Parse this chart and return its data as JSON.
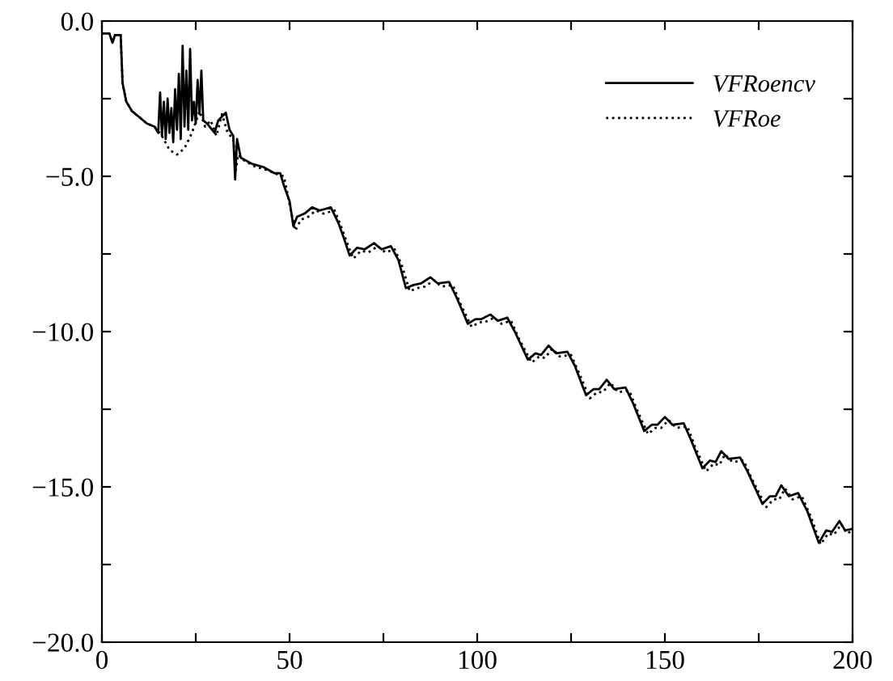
{
  "chart_data": {
    "type": "line",
    "xlim": [
      0,
      200
    ],
    "ylim": [
      -20,
      0
    ],
    "xticks": [
      0,
      {
        "value": 25,
        "label": null
      },
      50,
      {
        "value": 75,
        "label": null
      },
      100,
      {
        "value": 125,
        "label": null
      },
      150,
      {
        "value": 175,
        "label": null
      },
      200
    ],
    "yticks": [
      {
        "value": -20,
        "label": "−20.0"
      },
      {
        "value": -17.5,
        "label": null
      },
      {
        "value": -15,
        "label": "−15.0"
      },
      {
        "value": -12.5,
        "label": null
      },
      {
        "value": -10,
        "label": "−10.0"
      },
      {
        "value": -7.5,
        "label": null
      },
      {
        "value": -5,
        "label": "−5.0"
      },
      {
        "value": -2.5,
        "label": null
      },
      {
        "value": 0,
        "label": "0.0"
      }
    ],
    "grid": false,
    "legend": "top right",
    "marker": "none",
    "series": [
      {
        "name": "VFRoencv",
        "color": "#000000",
        "line_style": "solid",
        "x": [
          0,
          2,
          2.8,
          3.5,
          5,
          5.5,
          6.5,
          8,
          10,
          12,
          14,
          15,
          15.5,
          16,
          16.5,
          17,
          17.5,
          18,
          18.5,
          19,
          19.5,
          20,
          20.5,
          21,
          21.5,
          22,
          22.5,
          23,
          23.5,
          24,
          24.5,
          25,
          25.5,
          26,
          26.5,
          27,
          28,
          30,
          31,
          33,
          34,
          35,
          35.5,
          36,
          37,
          40,
          43,
          46,
          47.5,
          48.5,
          50,
          51,
          52,
          54,
          56,
          58,
          61,
          63,
          64.5,
          66,
          68,
          70,
          72.5,
          74.5,
          77,
          79,
          81,
          83,
          85,
          87.5,
          89.5,
          92.5,
          94.5,
          97.5,
          99.5,
          101,
          103.5,
          105.5,
          108,
          110,
          113.5,
          115.5,
          117,
          119,
          121,
          124,
          126,
          129,
          131,
          132.5,
          134.5,
          136.5,
          139.5,
          141.5,
          144.5,
          146.5,
          148,
          150,
          152,
          155,
          157,
          160,
          162,
          163.5,
          165,
          167,
          170,
          172,
          176,
          178,
          179.5,
          181,
          183,
          185.5,
          188,
          191,
          193,
          194.5,
          196.5,
          198,
          200
        ],
        "values": [
          -0.4,
          -0.4,
          -0.7,
          -0.45,
          -0.45,
          -2.0,
          -2.6,
          -2.9,
          -3.1,
          -3.3,
          -3.4,
          -3.6,
          -2.3,
          -3.7,
          -2.6,
          -3.8,
          -2.5,
          -3.6,
          -2.8,
          -3.9,
          -2.2,
          -3.5,
          -1.7,
          -3.8,
          -0.8,
          -3.4,
          -1.6,
          -3.5,
          -0.9,
          -3.2,
          -2.6,
          -3.3,
          -1.9,
          -3.0,
          -1.6,
          -3.2,
          -3.3,
          -3.6,
          -3.2,
          -2.95,
          -3.5,
          -3.7,
          -5.1,
          -3.8,
          -4.4,
          -4.6,
          -4.7,
          -4.9,
          -4.9,
          -5.3,
          -5.8,
          -6.6,
          -6.3,
          -6.2,
          -6.0,
          -6.1,
          -6.0,
          -6.5,
          -7.0,
          -7.55,
          -7.3,
          -7.35,
          -7.15,
          -7.35,
          -7.25,
          -7.7,
          -8.6,
          -8.5,
          -8.45,
          -8.25,
          -8.45,
          -8.4,
          -8.9,
          -9.75,
          -9.6,
          -9.6,
          -9.45,
          -9.65,
          -9.55,
          -10.0,
          -10.9,
          -10.7,
          -10.75,
          -10.45,
          -10.7,
          -10.65,
          -11.1,
          -12.05,
          -11.85,
          -11.85,
          -11.55,
          -11.85,
          -11.8,
          -12.3,
          -13.2,
          -13.0,
          -13.0,
          -12.75,
          -13.0,
          -12.95,
          -13.5,
          -14.4,
          -14.15,
          -14.2,
          -13.85,
          -14.1,
          -14.05,
          -14.5,
          -15.55,
          -15.3,
          -15.3,
          -14.95,
          -15.3,
          -15.2,
          -15.8,
          -16.8,
          -16.4,
          -16.45,
          -16.1,
          -16.4,
          -16.35
        ]
      },
      {
        "name": "VFRoe",
        "color": "#000000",
        "line_style": "dotted",
        "x": [
          0,
          2,
          2.8,
          3.5,
          5,
          5.5,
          6.5,
          8,
          10,
          12,
          14,
          16,
          18,
          20,
          22,
          24,
          26,
          27.5,
          29,
          30.5,
          32,
          33.5,
          35,
          35.7,
          36.3,
          38,
          41,
          44,
          47,
          48.5,
          50,
          51.5,
          53,
          55,
          57,
          59,
          62,
          64,
          65.5,
          67,
          69,
          71,
          73.5,
          75.5,
          78,
          80,
          82,
          84,
          86,
          88.5,
          90.5,
          93.5,
          95.5,
          98.5,
          100.5,
          102,
          104.5,
          106.5,
          109,
          111,
          114.5,
          116.5,
          118,
          120,
          122,
          125,
          127,
          130,
          132,
          133.5,
          135.5,
          137.5,
          140.5,
          142.5,
          145.5,
          147.5,
          149,
          151,
          153,
          156,
          158,
          161,
          163,
          164.5,
          166,
          168,
          171,
          173,
          177,
          179,
          180.5,
          182,
          184,
          186.5,
          189,
          191.5,
          193.5,
          195,
          197,
          198.5,
          200
        ],
        "values": [
          -0.4,
          -0.4,
          -0.7,
          -0.45,
          -0.45,
          -2.0,
          -2.6,
          -2.9,
          -3.1,
          -3.3,
          -3.4,
          -3.7,
          -4.15,
          -4.3,
          -4.1,
          -3.6,
          -2.9,
          -3.4,
          -3.2,
          -3.7,
          -3.0,
          -3.6,
          -3.8,
          -4.8,
          -4.3,
          -4.5,
          -4.7,
          -4.8,
          -4.95,
          -5.0,
          -5.9,
          -6.75,
          -6.4,
          -6.3,
          -6.1,
          -6.2,
          -6.1,
          -6.7,
          -7.2,
          -7.65,
          -7.4,
          -7.45,
          -7.25,
          -7.45,
          -7.35,
          -7.9,
          -8.7,
          -8.6,
          -8.55,
          -8.35,
          -8.55,
          -8.5,
          -9.1,
          -9.85,
          -9.7,
          -9.7,
          -9.55,
          -9.75,
          -9.65,
          -10.2,
          -11.0,
          -10.8,
          -10.85,
          -10.55,
          -10.8,
          -10.75,
          -11.3,
          -12.15,
          -11.95,
          -11.95,
          -11.65,
          -11.95,
          -11.9,
          -12.5,
          -13.3,
          -13.1,
          -13.1,
          -12.85,
          -13.1,
          -13.05,
          -13.7,
          -14.5,
          -14.25,
          -14.3,
          -13.95,
          -14.2,
          -14.15,
          -14.7,
          -15.65,
          -15.4,
          -15.4,
          -15.05,
          -15.4,
          -15.3,
          -16.0,
          -16.85,
          -16.5,
          -16.55,
          -16.2,
          -16.5,
          -16.4
        ]
      }
    ]
  }
}
